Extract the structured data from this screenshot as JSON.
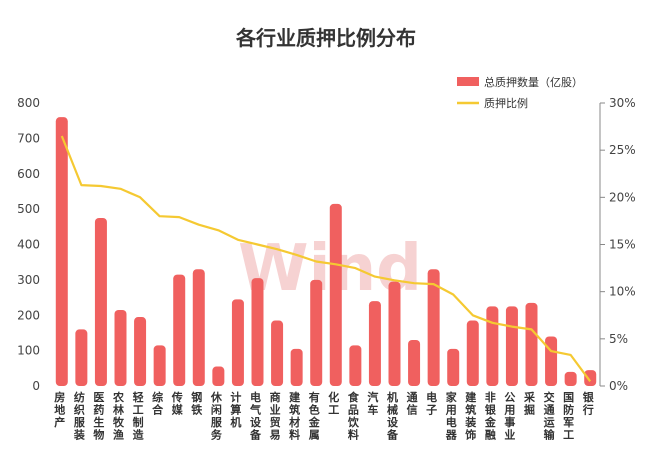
{
  "watermark": "Wind",
  "chart_data": {
    "type": "bar+line",
    "title": "各行业质押比例分布",
    "categories": [
      "房地产",
      "纺织服装",
      "医药生物",
      "农林牧渔",
      "轻工制造",
      "综合",
      "传媒",
      "钢铁",
      "休闲服务",
      "计算机",
      "电气设备",
      "商业贸易",
      "建筑材料",
      "有色金属",
      "化工",
      "食品饮料",
      "汽车",
      "机械设备",
      "通信",
      "电子",
      "家用电器",
      "建筑装饰",
      "非银金融",
      "公用事业",
      "采掘",
      "交通运输",
      "国防军工",
      "银行"
    ],
    "series": [
      {
        "name": "总质押数量（亿股）",
        "type": "bar",
        "axis": "left",
        "color": "#f0605f",
        "values": [
          760,
          160,
          475,
          215,
          195,
          115,
          315,
          330,
          55,
          245,
          305,
          185,
          105,
          300,
          515,
          115,
          240,
          295,
          130,
          330,
          105,
          185,
          225,
          225,
          235,
          140,
          40,
          45
        ]
      },
      {
        "name": "质押比例",
        "type": "line",
        "axis": "right",
        "color": "#f5c932",
        "values": [
          26.5,
          21.3,
          21.2,
          20.9,
          20.0,
          18.0,
          17.9,
          17.1,
          16.5,
          15.5,
          15.0,
          14.5,
          13.9,
          13.2,
          12.9,
          12.5,
          11.6,
          11.2,
          10.9,
          10.8,
          9.7,
          7.5,
          6.7,
          6.3,
          6.0,
          3.7,
          3.3,
          0.5
        ]
      }
    ],
    "y_left": {
      "min": 0,
      "max": 800,
      "ticks": [
        "0",
        "100",
        "200",
        "300",
        "400",
        "500",
        "600",
        "700",
        "800"
      ]
    },
    "y_right": {
      "min": 0,
      "max": 30,
      "ticks": [
        "0%",
        "5%",
        "10%",
        "15%",
        "20%",
        "25%",
        "30%"
      ]
    },
    "legend_position": "top-right",
    "grid": false
  }
}
